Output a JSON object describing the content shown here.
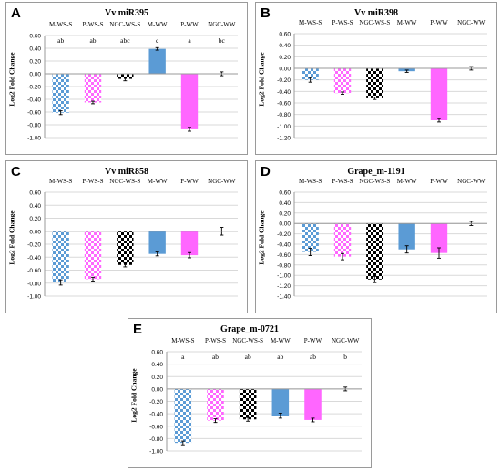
{
  "colors": {
    "M": "#5b9bd5",
    "P": "#ff66ff",
    "NGC": "#000000",
    "grid": "#d9d9d9",
    "axis": "#9a9a9a"
  },
  "chart_data": [
    {
      "letter": "A",
      "title": "Vv miR395",
      "type": "bar",
      "categories": [
        "M-WS-S",
        "P-WS-S",
        "NGC-WS-S",
        "M-WW",
        "P-WW",
        "NGC-WW"
      ],
      "values": [
        -0.61,
        -0.45,
        -0.08,
        0.39,
        -0.87,
        0.0
      ],
      "errors": [
        0.03,
        0.02,
        0.03,
        0.02,
        0.03,
        0.03
      ],
      "letters": [
        "ab",
        "ab",
        "abc",
        "c",
        "a",
        "bc"
      ],
      "ylabel": "Log2 Fold Change",
      "ylim": [
        -1.0,
        0.6
      ],
      "yticks": [
        "0.60",
        "0.40",
        "0.20",
        "0.00",
        "-0.20",
        "-0.40",
        "-0.60",
        "-0.80",
        "-1.00"
      ],
      "grid": true
    },
    {
      "letter": "B",
      "title": "Vv miR398",
      "type": "bar",
      "categories": [
        "M-WS-S",
        "P-WS-S",
        "NGC-WS-S",
        "M-WW",
        "P-WW",
        "NGC-WW"
      ],
      "values": [
        -0.2,
        -0.43,
        -0.52,
        -0.05,
        -0.9,
        0.0
      ],
      "errors": [
        0.04,
        0.02,
        0.02,
        0.02,
        0.03,
        0.03
      ],
      "letters": [],
      "ylabel": "Log2 Fold Change",
      "ylim": [
        -1.2,
        0.6
      ],
      "yticks": [
        "0.60",
        "0.40",
        "0.20",
        "0.00",
        "-0.20",
        "-0.40",
        "-0.60",
        "-0.80",
        "-1.00",
        "-1.20"
      ],
      "grid": true
    },
    {
      "letter": "C",
      "title": "Vv miR858",
      "type": "bar",
      "categories": [
        "M-WS-S",
        "P-WS-S",
        "NGC-WS-S",
        "M-WW",
        "P-WW",
        "NGC-WW"
      ],
      "values": [
        -0.79,
        -0.74,
        -0.52,
        -0.35,
        -0.37,
        0.0
      ],
      "errors": [
        0.04,
        0.03,
        0.03,
        0.03,
        0.04,
        0.06
      ],
      "letters": [],
      "ylabel": "Log2 Fold Change",
      "ylim": [
        -1.0,
        0.6
      ],
      "yticks": [
        "0.60",
        "0.40",
        "0.20",
        "0.00",
        "-0.20",
        "-0.40",
        "-0.60",
        "-0.80",
        "-1.00"
      ],
      "grid": true
    },
    {
      "letter": "D",
      "title": "Grape_m-1191",
      "type": "bar",
      "categories": [
        "M-WS-S",
        "P-WS-S",
        "NGC-WS-S",
        "M-WW",
        "P-WW",
        "NGC-WW"
      ],
      "values": [
        -0.55,
        -0.64,
        -1.08,
        -0.5,
        -0.57,
        0.0
      ],
      "errors": [
        0.07,
        0.06,
        0.06,
        0.07,
        0.1,
        0.04
      ],
      "letters": [],
      "ylabel": "Log2 Fold Change",
      "ylim": [
        -1.4,
        0.6
      ],
      "yticks": [
        "0.60",
        "0.40",
        "0.20",
        "0.00",
        "-0.20",
        "-0.40",
        "-0.60",
        "-0.80",
        "-1.00",
        "-1.20",
        "-1.40"
      ],
      "grid": true
    },
    {
      "letter": "E",
      "title": "Grape_m-0721",
      "type": "bar",
      "categories": [
        "M-WS-S",
        "P-WS-S",
        "NGC-WS-S",
        "M-WW",
        "P-WW",
        "NGC-WW"
      ],
      "values": [
        -0.87,
        -0.51,
        -0.49,
        -0.43,
        -0.5,
        0.0
      ],
      "errors": [
        0.03,
        0.03,
        0.03,
        0.04,
        0.03,
        0.03
      ],
      "letters": [
        "a",
        "ab",
        "ab",
        "ab",
        "ab",
        "b"
      ],
      "ylabel": "Log2 Fold Change",
      "ylim": [
        -1.0,
        0.6
      ],
      "yticks": [
        "0.60",
        "0.40",
        "0.20",
        "0.00",
        "-0.20",
        "-0.40",
        "-0.60",
        "-0.80",
        "-1.00"
      ],
      "grid": true
    }
  ]
}
